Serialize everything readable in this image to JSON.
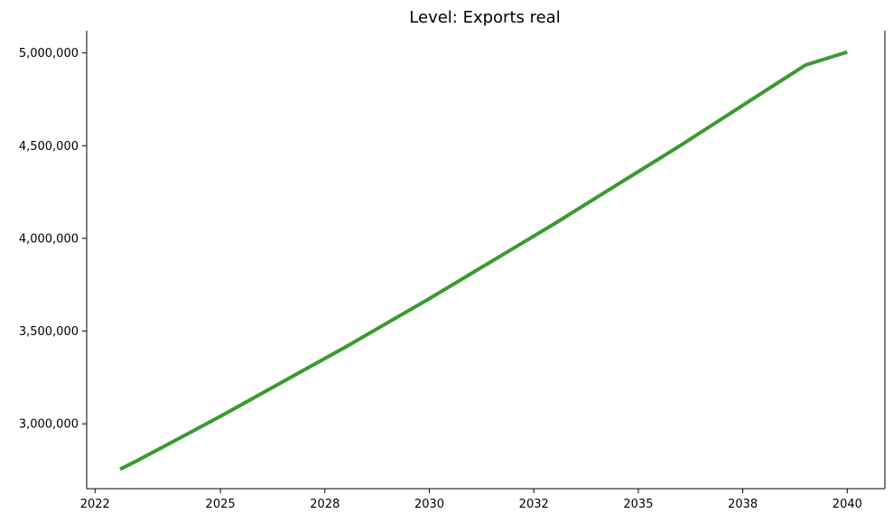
{
  "chart_data": {
    "type": "line",
    "title": "Level: Exports real",
    "xlabel": "",
    "ylabel": "",
    "x_ticks": [
      {
        "value": 2022.0,
        "label": "2022"
      },
      {
        "value": 2025.0,
        "label": "2025"
      },
      {
        "value": 2027.5,
        "label": "2028"
      },
      {
        "value": 2030.0,
        "label": "2030"
      },
      {
        "value": 2032.5,
        "label": "2032"
      },
      {
        "value": 2035.0,
        "label": "2035"
      },
      {
        "value": 2037.5,
        "label": "2038"
      },
      {
        "value": 2040.0,
        "label": "2040"
      }
    ],
    "y_ticks": [
      {
        "value": 3000000,
        "label": "3,000,000"
      },
      {
        "value": 3500000,
        "label": "3,500,000"
      },
      {
        "value": 4000000,
        "label": "4,000,000"
      },
      {
        "value": 4500000,
        "label": "4,500,000"
      },
      {
        "value": 5000000,
        "label": "5,000,000"
      }
    ],
    "xlim": [
      2021.8,
      2040.9
    ],
    "ylim": [
      2650000,
      5120000
    ],
    "grid": false,
    "series": [
      {
        "color": "#3a9a2f",
        "x": [
          2022.6,
          2023,
          2024,
          2025,
          2026,
          2027,
          2028,
          2029,
          2030,
          2031,
          2032,
          2033,
          2034,
          2035,
          2036,
          2037,
          2038,
          2039,
          2040
        ],
        "y": [
          2755000,
          2800000,
          2920000,
          3040000,
          3165000,
          3290000,
          3415000,
          3545000,
          3675000,
          3810000,
          3945000,
          4080000,
          4220000,
          4360000,
          4500000,
          4645000,
          4790000,
          4935000,
          5005000
        ]
      }
    ]
  }
}
